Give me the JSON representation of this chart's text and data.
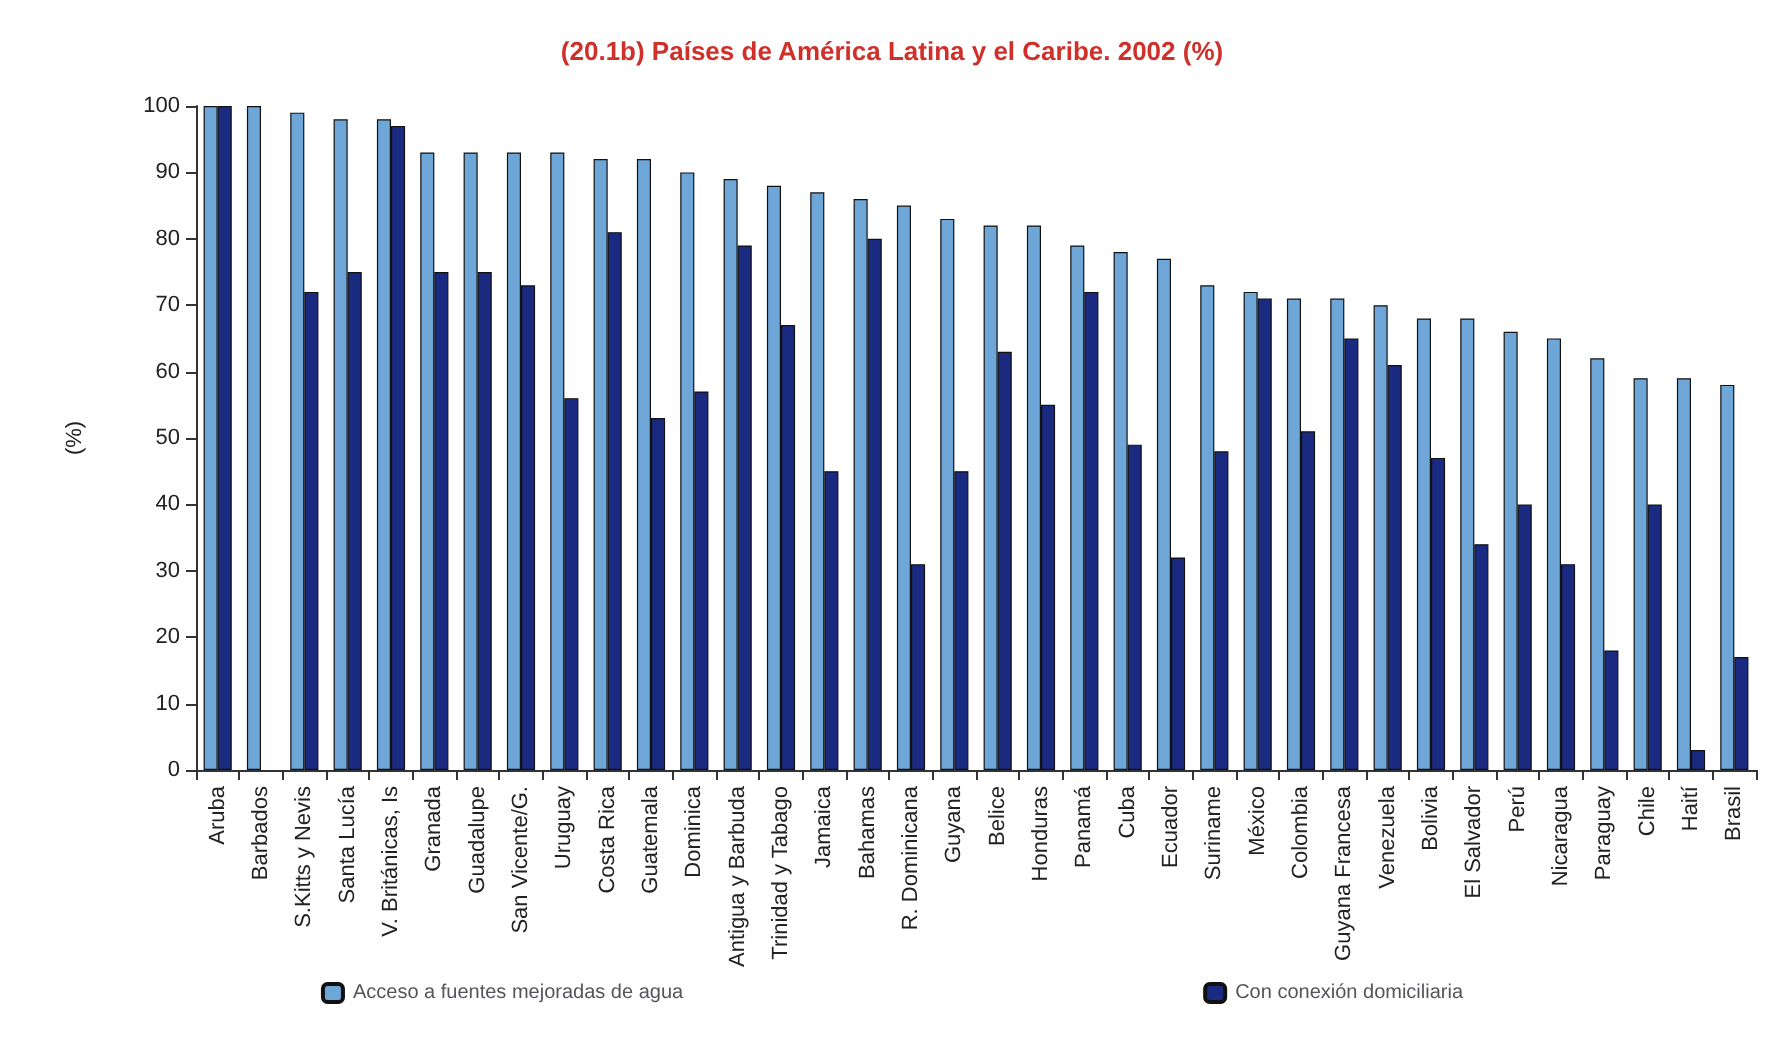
{
  "chart_data": {
    "type": "bar",
    "title": "(20.1b) Países de América Latina y el Caribe. 2002 (%)",
    "ylabel": "(%)",
    "categories": [
      "Aruba",
      "Barbados",
      "S.Kitts y Nevis",
      "Santa Lucía",
      "V. Británicas, Is",
      "Granada",
      "Guadalupe",
      "San Vicente/G.",
      "Uruguay",
      "Costa Rica",
      "Guatemala",
      "Dominica",
      "Antigua y Barbuda",
      "Trinidad y Tabago",
      "Jamaica",
      "Bahamas",
      "R. Dominicana",
      "Guyana",
      "Belice",
      "Honduras",
      "Panamá",
      "Cuba",
      "Ecuador",
      "Suriname",
      "México",
      "Colombia",
      "Guyana Francesa",
      "Venezuela",
      "Bolivia",
      "El Salvador",
      "Perú",
      "Nicaragua",
      "Paraguay",
      "Chile",
      "Haití",
      "Brasil"
    ],
    "series": [
      {
        "name": "Acceso a fuentes mejoradas de agua",
        "color": "#6fa6d8",
        "values": [
          100,
          100,
          99,
          98,
          98,
          93,
          93,
          93,
          93,
          92,
          92,
          90,
          89,
          88,
          87,
          86,
          85,
          83,
          82,
          82,
          79,
          78,
          77,
          73,
          72,
          71,
          71,
          70,
          68,
          68,
          66,
          65,
          62,
          59,
          59,
          58
        ]
      },
      {
        "name": "Con conexión domiciliaria",
        "color": "#1a2a80",
        "values": [
          100,
          null,
          72,
          75,
          97,
          75,
          75,
          73,
          56,
          81,
          53,
          57,
          79,
          67,
          45,
          80,
          31,
          45,
          63,
          55,
          72,
          49,
          32,
          48,
          71,
          51,
          65,
          61,
          47,
          34,
          40,
          31,
          18,
          40,
          3,
          17
        ]
      }
    ],
    "ylim": [
      0,
      100
    ],
    "yticks": [
      0,
      10,
      20,
      30,
      40,
      50,
      60,
      70,
      80,
      90,
      100
    ],
    "grid": false,
    "legend": "bottom"
  }
}
